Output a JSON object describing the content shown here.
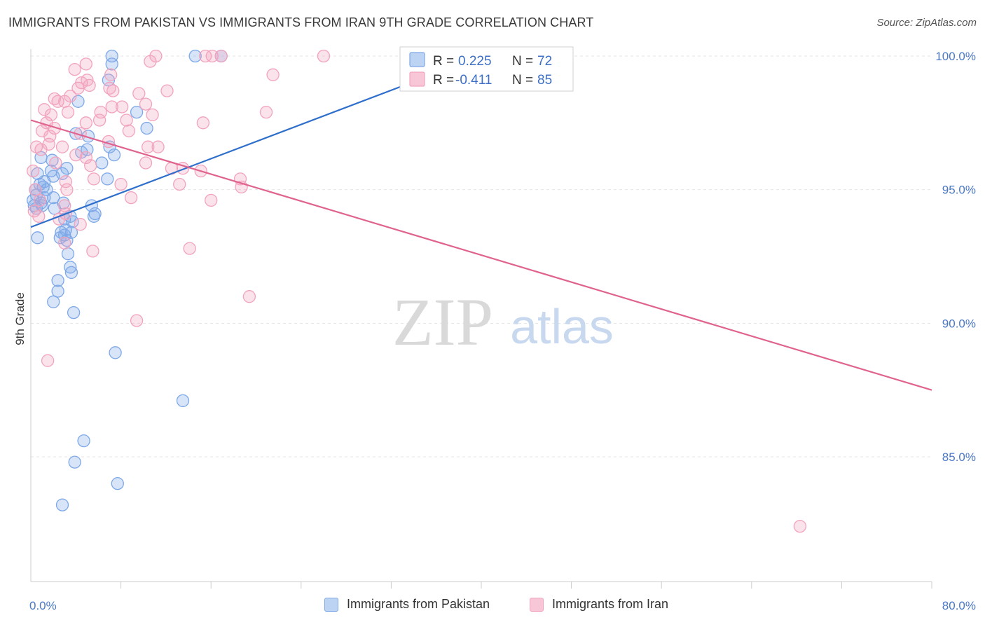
{
  "title": "IMMIGRANTS FROM PAKISTAN VS IMMIGRANTS FROM IRAN 9TH GRADE CORRELATION CHART",
  "source": "Source: ZipAtlas.com",
  "watermark": {
    "zip": "ZIP",
    "atlas": "atlas"
  },
  "chart_data": {
    "type": "scatter",
    "title": "IMMIGRANTS FROM PAKISTAN VS IMMIGRANTS FROM IRAN 9TH GRADE CORRELATION CHART",
    "xlabel": "",
    "ylabel": "9th Grade",
    "xlim": [
      0,
      80
    ],
    "ylim": [
      80.6,
      101.0
    ],
    "x_tick_labels": [
      {
        "value": 0,
        "label": "0.0%"
      },
      {
        "value": 80,
        "label": "80.0%"
      }
    ],
    "x_minor_ticks": [
      8,
      16,
      24,
      32,
      40,
      48,
      56,
      64,
      72,
      80
    ],
    "y_ticks": [
      {
        "value": 100,
        "label": "100.0%"
      },
      {
        "value": 95,
        "label": "95.0%"
      },
      {
        "value": 90,
        "label": "90.0%"
      },
      {
        "value": 85,
        "label": "85.0%"
      }
    ],
    "grid": true,
    "legend_position": "top-center",
    "series": [
      {
        "name": "Immigrants from Pakistan",
        "color": "#7ea8e8",
        "line_color": "#2f6fcc",
        "R": "0.225",
        "N": "72",
        "trend": {
          "x": [
            0,
            40
          ],
          "y": [
            93.6,
            100.0
          ]
        },
        "points": [
          [
            7.2,
            100
          ],
          [
            14.6,
            100
          ],
          [
            16.9,
            100
          ],
          [
            7.2,
            99.7
          ],
          [
            6.9,
            99.1
          ],
          [
            4.2,
            98.3
          ],
          [
            9.4,
            97.9
          ],
          [
            10.3,
            97.3
          ],
          [
            4.0,
            97.1
          ],
          [
            5.1,
            97.0
          ],
          [
            4.5,
            96.4
          ],
          [
            5.0,
            96.5
          ],
          [
            7.0,
            96.6
          ],
          [
            7.4,
            96.3
          ],
          [
            0.9,
            96.2
          ],
          [
            6.3,
            96.0
          ],
          [
            1.9,
            96.1
          ],
          [
            3.2,
            95.8
          ],
          [
            1.8,
            95.7
          ],
          [
            2.8,
            95.6
          ],
          [
            0.6,
            95.6
          ],
          [
            2.0,
            95.5
          ],
          [
            1.2,
            95.3
          ],
          [
            6.8,
            95.4
          ],
          [
            0.4,
            95.0
          ],
          [
            0.8,
            95.2
          ],
          [
            1.1,
            95.1
          ],
          [
            1.4,
            95.0
          ],
          [
            0.5,
            94.8
          ],
          [
            1.2,
            94.7
          ],
          [
            2.0,
            94.7
          ],
          [
            0.2,
            94.6
          ],
          [
            0.9,
            94.5
          ],
          [
            0.3,
            94.4
          ],
          [
            2.9,
            94.5
          ],
          [
            0.5,
            94.3
          ],
          [
            1.0,
            94.4
          ],
          [
            2.1,
            94.3
          ],
          [
            5.4,
            94.4
          ],
          [
            5.7,
            94.1
          ],
          [
            3.5,
            94.0
          ],
          [
            5.6,
            94.0
          ],
          [
            3.7,
            93.8
          ],
          [
            3.0,
            93.9
          ],
          [
            3.1,
            93.5
          ],
          [
            2.7,
            93.4
          ],
          [
            3.6,
            93.4
          ],
          [
            3.0,
            93.3
          ],
          [
            3.2,
            93.1
          ],
          [
            2.6,
            93.2
          ],
          [
            0.6,
            93.2
          ],
          [
            3.3,
            92.6
          ],
          [
            3.5,
            92.1
          ],
          [
            3.6,
            91.9
          ],
          [
            2.4,
            91.6
          ],
          [
            2.4,
            91.2
          ],
          [
            2.0,
            90.8
          ],
          [
            3.8,
            90.4
          ],
          [
            7.5,
            88.9
          ],
          [
            13.5,
            87.1
          ],
          [
            4.7,
            85.6
          ],
          [
            3.9,
            84.8
          ],
          [
            7.7,
            84.0
          ],
          [
            2.8,
            83.2
          ]
        ]
      },
      {
        "name": "Immigrants from Iran",
        "color": "#f2a3bd",
        "line_color": "#e0628e",
        "R": "-0.411",
        "N": "85",
        "trend": {
          "x": [
            0,
            80
          ],
          "y": [
            97.6,
            87.5
          ]
        },
        "points": [
          [
            11.1,
            100
          ],
          [
            15.5,
            100
          ],
          [
            16.1,
            100
          ],
          [
            16.9,
            100
          ],
          [
            26.0,
            100
          ],
          [
            10.6,
            99.8
          ],
          [
            4.9,
            99.7
          ],
          [
            3.9,
            99.5
          ],
          [
            7.1,
            99.3
          ],
          [
            21.5,
            99.3
          ],
          [
            4.5,
            99.0
          ],
          [
            5.0,
            99.1
          ],
          [
            5.2,
            98.9
          ],
          [
            4.2,
            98.8
          ],
          [
            7.0,
            98.8
          ],
          [
            7.3,
            98.7
          ],
          [
            12.1,
            98.7
          ],
          [
            3.5,
            98.5
          ],
          [
            2.1,
            98.4
          ],
          [
            9.6,
            98.6
          ],
          [
            2.4,
            98.3
          ],
          [
            3.0,
            98.3
          ],
          [
            10.2,
            98.2
          ],
          [
            7.2,
            98.1
          ],
          [
            8.1,
            98.1
          ],
          [
            1.2,
            98.0
          ],
          [
            3.3,
            97.9
          ],
          [
            6.2,
            97.9
          ],
          [
            20.9,
            97.9
          ],
          [
            1.8,
            97.8
          ],
          [
            10.8,
            97.8
          ],
          [
            6.1,
            97.6
          ],
          [
            8.5,
            97.6
          ],
          [
            1.4,
            97.5
          ],
          [
            4.9,
            97.5
          ],
          [
            15.3,
            97.5
          ],
          [
            2.1,
            97.3
          ],
          [
            1.0,
            97.2
          ],
          [
            8.7,
            97.2
          ],
          [
            4.4,
            97.1
          ],
          [
            1.7,
            97.0
          ],
          [
            6.9,
            96.8
          ],
          [
            1.6,
            96.7
          ],
          [
            0.5,
            96.6
          ],
          [
            2.8,
            96.6
          ],
          [
            0.9,
            96.5
          ],
          [
            10.4,
            96.6
          ],
          [
            11.3,
            96.6
          ],
          [
            4.0,
            96.3
          ],
          [
            4.9,
            96.2
          ],
          [
            2.2,
            96.0
          ],
          [
            5.3,
            95.9
          ],
          [
            10.2,
            96.0
          ],
          [
            12.5,
            95.8
          ],
          [
            13.5,
            95.8
          ],
          [
            0.2,
            95.7
          ],
          [
            15.1,
            95.7
          ],
          [
            5.6,
            95.4
          ],
          [
            3.1,
            95.3
          ],
          [
            8.0,
            95.2
          ],
          [
            13.2,
            95.2
          ],
          [
            18.6,
            95.4
          ],
          [
            18.7,
            95.1
          ],
          [
            0.4,
            95.0
          ],
          [
            3.2,
            95.0
          ],
          [
            8.9,
            94.7
          ],
          [
            0.8,
            94.6
          ],
          [
            16.0,
            94.6
          ],
          [
            3.0,
            94.4
          ],
          [
            0.3,
            94.2
          ],
          [
            3.1,
            94.1
          ],
          [
            0.7,
            94.0
          ],
          [
            2.5,
            93.9
          ],
          [
            4.4,
            93.7
          ],
          [
            3.0,
            93.0
          ],
          [
            5.5,
            92.7
          ],
          [
            14.1,
            92.8
          ],
          [
            19.4,
            91.0
          ],
          [
            9.4,
            90.1
          ],
          [
            1.5,
            88.6
          ],
          [
            68.3,
            82.4
          ]
        ]
      }
    ]
  },
  "legend": {
    "r_label": "R =",
    "n_label": "N ="
  }
}
